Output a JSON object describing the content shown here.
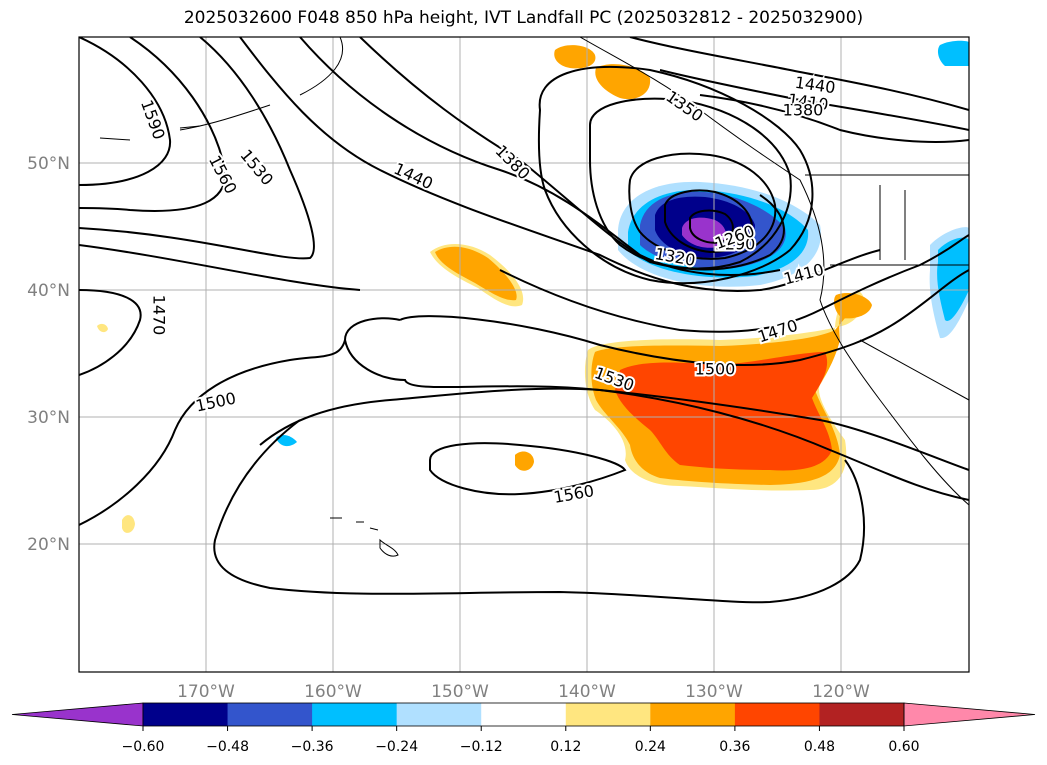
{
  "title": "2025032600 F048 850 hPa height, IVT Landfall PC (2025032812 - 2025032900)",
  "lat_labels": [
    "50°N",
    "40°N",
    "30°N",
    "20°N"
  ],
  "lon_labels": [
    "170°W",
    "160°W",
    "150°W",
    "140°W",
    "130°W",
    "120°W"
  ],
  "contour_labels": [
    "1590",
    "1560",
    "1530",
    "1440",
    "1380",
    "1440",
    "1410",
    "1380",
    "1350",
    "1320",
    "1290",
    "1260",
    "1410",
    "1470",
    "1500",
    "1530",
    "1500",
    "1470",
    "1560"
  ],
  "colorbar": {
    "colors": [
      "#9933cc",
      "#00008b",
      "#3355cc",
      "#00bfff",
      "#b0e0ff",
      "#ffffff",
      "#ffe680",
      "#ffa500",
      "#ff4500",
      "#b22222",
      "#ff88aa"
    ],
    "ticks": [
      "−0.60",
      "−0.48",
      "−0.36",
      "−0.24",
      "−0.12",
      "0.12",
      "0.24",
      "0.36",
      "0.48",
      "0.60"
    ]
  }
}
